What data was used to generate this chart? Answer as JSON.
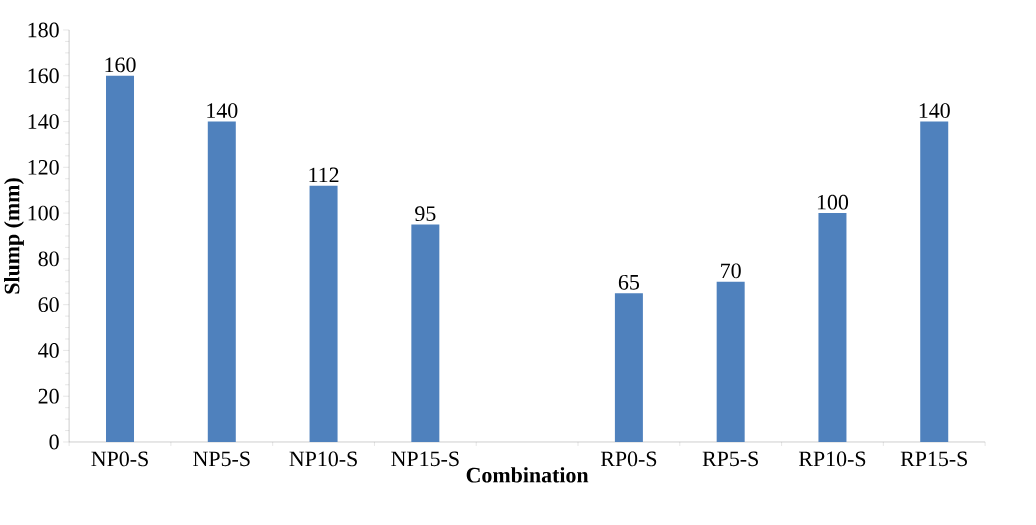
{
  "chart_data": {
    "type": "bar",
    "xlabel": "Combination",
    "ylabel": "Slump (mm)",
    "categories": [
      "NP0-S",
      "NP5-S",
      "NP10-S",
      "NP15-S",
      null,
      "RP0-S",
      "RP5-S",
      "RP10-S",
      "RP15-S"
    ],
    "values": [
      160,
      140,
      112,
      95,
      null,
      65,
      70,
      100,
      140
    ],
    "color": "#4f81bd",
    "ylim": [
      0,
      180
    ],
    "yticks": [
      0,
      20,
      40,
      60,
      80,
      100,
      120,
      140,
      160,
      180
    ],
    "data_labels": true
  }
}
